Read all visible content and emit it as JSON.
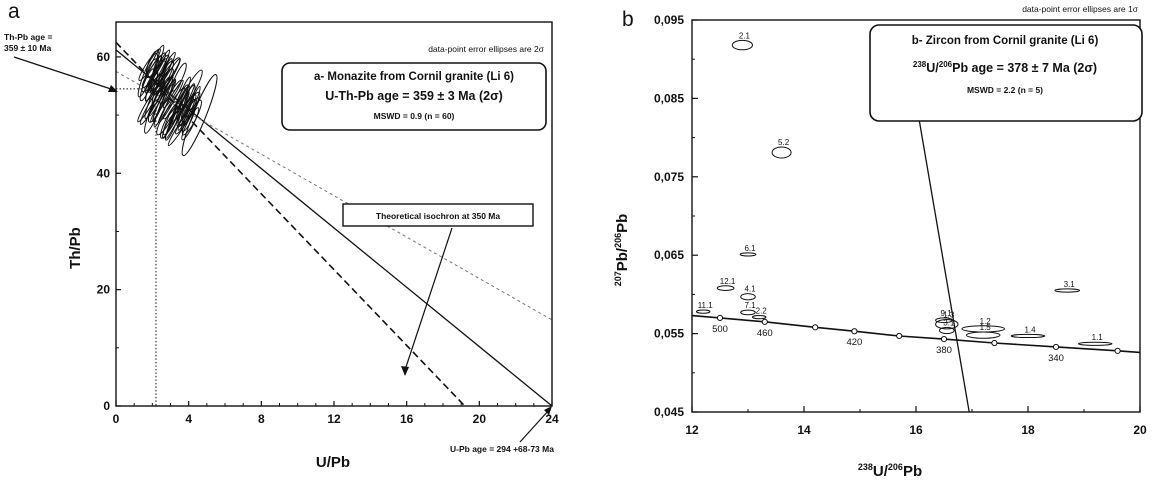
{
  "chart_data": [
    {
      "type": "scatter",
      "panel_letter": "a",
      "xlabel": "U/Pb",
      "ylabel": "Th/Pb",
      "xlim": [
        0,
        24
      ],
      "ylim": [
        0,
        66
      ],
      "x_ticks": [
        "0",
        "4",
        "8",
        "12",
        "16",
        "20",
        "24"
      ],
      "y_ticks": [
        "0",
        "20",
        "40",
        "60"
      ],
      "note": "data-point error ellipses are 2σ",
      "legend_box": {
        "title": "a- Monazite from Cornil granite (Li 6)",
        "age": "U-Th-Pb age = 359 ± 3 Ma (2σ)",
        "mswd": "MSWD = 0.9 (n = 60)"
      },
      "theoretical_label": "Theoretical isochron at 350 Ma",
      "th_pb_age_label": [
        "Th-Pb age =",
        "359 ± 10 Ma"
      ],
      "u_pb_age_label": "U-Pb age = 294 +68-73 Ma",
      "lines": [
        {
          "style": "solid",
          "x0": 0,
          "y0": 61.2,
          "x1": 24,
          "y1": 0
        },
        {
          "style": "dashed",
          "x0": 0,
          "y0": 62.5,
          "x1": 19.2,
          "y1": 0
        },
        {
          "style": "dashed-light",
          "x0": 0,
          "y0": 57.5,
          "x1": 24,
          "y1": 14.8
        }
      ],
      "reference_point": {
        "x": 2.2,
        "y": 54.5
      },
      "ellipse_cluster": {
        "x_range": [
          1.7,
          4.2
        ],
        "y_range": [
          46,
          63
        ],
        "count": 60
      },
      "outlier_ellipse": {
        "x": 4.6,
        "y": 50,
        "rx": 0.35,
        "ry": 7.5
      }
    },
    {
      "type": "scatter",
      "panel_letter": "b",
      "xlabel": "238U/206Pb",
      "ylabel": "207Pb/206Pb",
      "xlim": [
        12,
        20
      ],
      "ylim": [
        0.045,
        0.095
      ],
      "x_ticks": [
        "12",
        "14",
        "16",
        "18",
        "20"
      ],
      "y_ticks": [
        "0,045",
        "0,055",
        "0,065",
        "0,075",
        "0,085",
        "0,095"
      ],
      "note": "data-point error ellipses are 1σ",
      "legend_box": {
        "title": "b- Zircon from Cornil granite (Li 6)",
        "age": "238U/206Pb age = 378 ± 7 Ma (2σ)",
        "mswd": "MSWD = 2.2 (n = 5)"
      },
      "concordia": {
        "points": [
          {
            "x": 12.0,
            "y": 0.0573
          },
          {
            "x": 12.5,
            "y": 0.057,
            "label": "500"
          },
          {
            "x": 13.3,
            "y": 0.0565,
            "label": "460"
          },
          {
            "x": 14.2,
            "y": 0.0558
          },
          {
            "x": 14.9,
            "y": 0.0553,
            "label": "420"
          },
          {
            "x": 15.7,
            "y": 0.0547
          },
          {
            "x": 16.5,
            "y": 0.0543,
            "label": "380"
          },
          {
            "x": 17.4,
            "y": 0.0538
          },
          {
            "x": 18.5,
            "y": 0.0533,
            "label": "340"
          },
          {
            "x": 19.6,
            "y": 0.0528
          },
          {
            "x": 20.0,
            "y": 0.0526
          }
        ]
      },
      "regression_line": {
        "x0": 15.9,
        "y0": 0.0888,
        "x1": 16.95,
        "y1": 0.045
      },
      "points": [
        {
          "label": "2.1",
          "x": 12.9,
          "y": 0.0918,
          "rx": 0.18,
          "ry": 0.0006
        },
        {
          "label": "5.2",
          "x": 13.6,
          "y": 0.0781,
          "rx": 0.17,
          "ry": 0.0007
        },
        {
          "label": "6.1",
          "x": 13.0,
          "y": 0.0651,
          "rx": 0.14,
          "ry": 0.0002
        },
        {
          "label": "12.1",
          "x": 12.6,
          "y": 0.0608,
          "rx": 0.15,
          "ry": 0.0003
        },
        {
          "label": "4.1",
          "x": 13.0,
          "y": 0.0597,
          "rx": 0.13,
          "ry": 0.0004
        },
        {
          "label": "7.1",
          "x": 13.0,
          "y": 0.0577,
          "rx": 0.13,
          "ry": 0.0003
        },
        {
          "label": "11.1",
          "x": 12.2,
          "y": 0.0578,
          "rx": 0.12,
          "ry": 0.0002
        },
        {
          "label": "2.2",
          "x": 13.2,
          "y": 0.0571,
          "rx": 0.12,
          "ry": 0.0002
        },
        {
          "label": "9.1",
          "x": 16.5,
          "y": 0.0567,
          "rx": 0.15,
          "ry": 0.0003
        },
        {
          "label": "1.3",
          "x": 16.55,
          "y": 0.0562,
          "rx": 0.2,
          "ry": 0.0006
        },
        {
          "label": "3.1",
          "x": 16.55,
          "y": 0.0554,
          "rx": 0.13,
          "ry": 0.0004
        },
        {
          "label": "1.2",
          "x": 17.2,
          "y": 0.0556,
          "rx": 0.38,
          "ry": 0.0004
        },
        {
          "label": "1.5",
          "x": 17.2,
          "y": 0.0548,
          "rx": 0.3,
          "ry": 0.0004
        },
        {
          "label": "1.4",
          "x": 18.0,
          "y": 0.0547,
          "rx": 0.3,
          "ry": 0.0002
        },
        {
          "label": "1.1",
          "x": 19.2,
          "y": 0.0537,
          "rx": 0.3,
          "ry": 0.0002
        },
        {
          "label": "3.1",
          "x": 18.7,
          "y": 0.0605,
          "rx": 0.22,
          "ry": 0.0002
        }
      ]
    }
  ]
}
